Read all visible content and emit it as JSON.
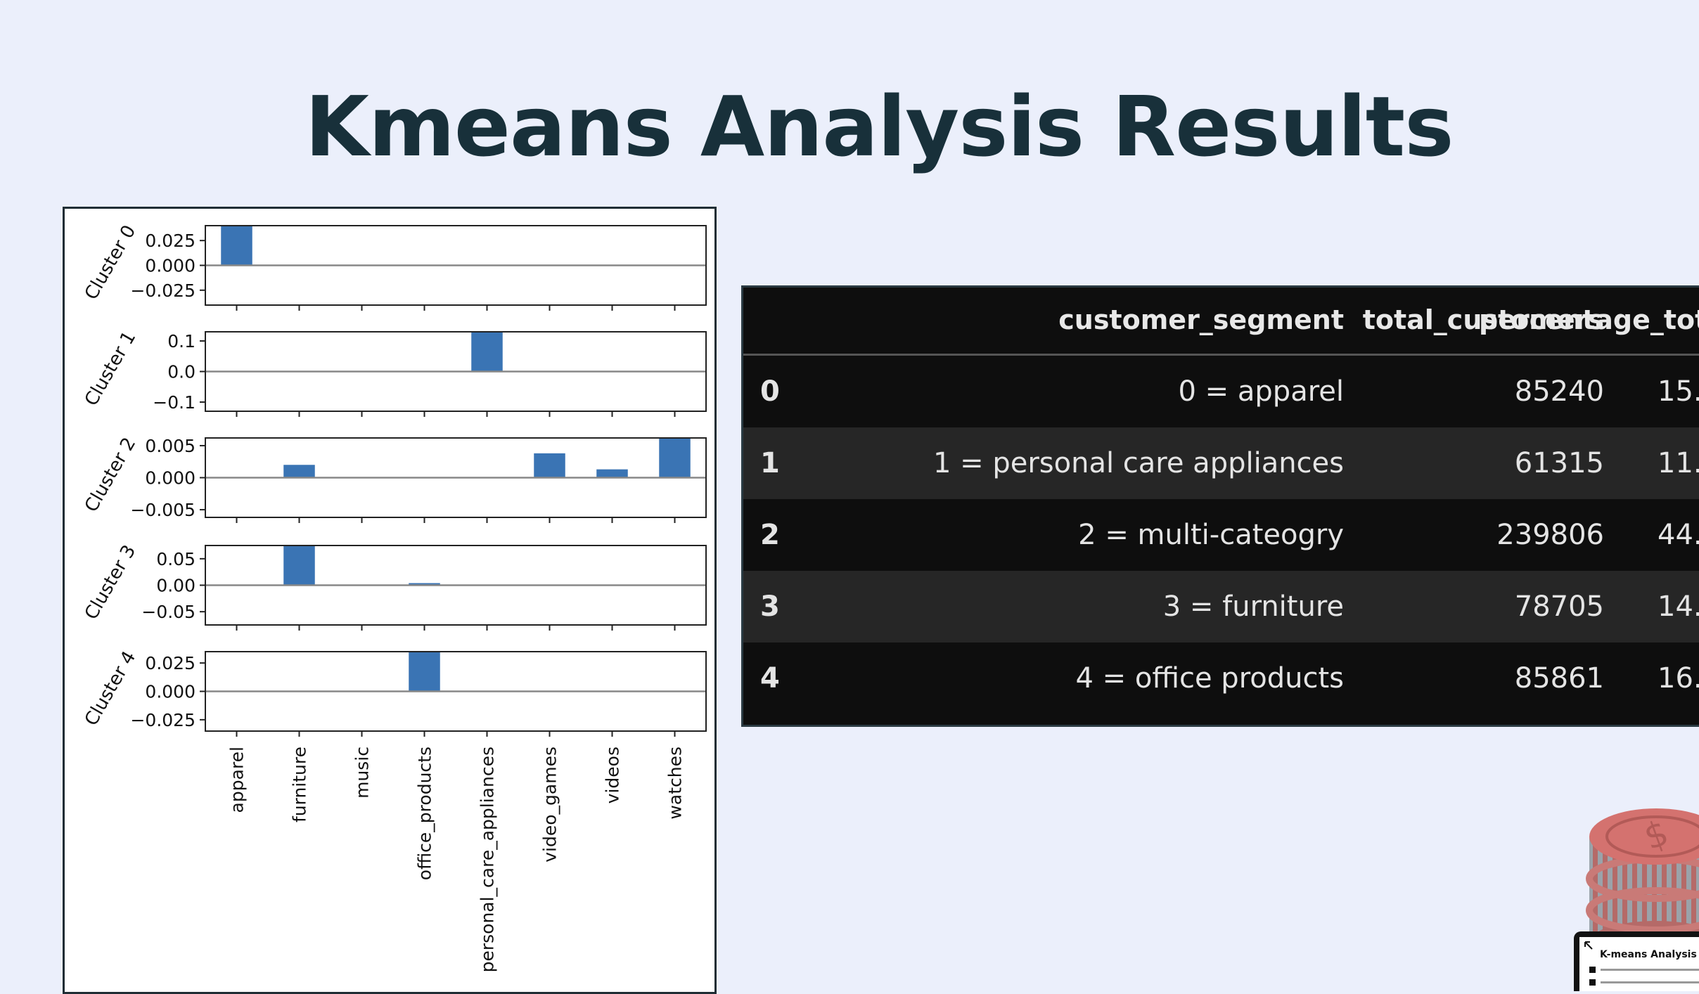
{
  "page": {
    "title": "Kmeans Analysis Results"
  },
  "chart_data": {
    "type": "bar",
    "categories": [
      "apparel",
      "furniture",
      "music",
      "office_products",
      "personal_care_appliances",
      "video_games",
      "videos",
      "watches"
    ],
    "panels": [
      {
        "label": "Cluster 0",
        "ylim": [
          -0.04,
          0.04
        ],
        "yticks": [
          0.025,
          0.0,
          -0.025
        ],
        "tick_labels": [
          "0.025",
          "0.000",
          "−0.025"
        ],
        "values": [
          0.045,
          0,
          0,
          0,
          0,
          0,
          0,
          0
        ]
      },
      {
        "label": "Cluster 1",
        "ylim": [
          -0.13,
          0.13
        ],
        "yticks": [
          0.1,
          0.0,
          -0.1
        ],
        "tick_labels": [
          "0.1",
          "0.0",
          "−0.1"
        ],
        "values": [
          0,
          0,
          0,
          0,
          0.15,
          0,
          0,
          0
        ]
      },
      {
        "label": "Cluster 2",
        "ylim": [
          -0.0062,
          0.0062
        ],
        "yticks": [
          0.005,
          0.0,
          -0.005
        ],
        "tick_labels": [
          "0.005",
          "0.000",
          "−0.005"
        ],
        "values": [
          0,
          0.002,
          0,
          0,
          0,
          0.0038,
          0.0013,
          0.0065
        ]
      },
      {
        "label": "Cluster 3",
        "ylim": [
          -0.075,
          0.075
        ],
        "yticks": [
          0.05,
          0.0,
          -0.05
        ],
        "tick_labels": [
          "0.05",
          "0.00",
          "−0.05"
        ],
        "values": [
          0,
          0.09,
          0,
          0.004,
          0,
          0,
          0,
          0
        ]
      },
      {
        "label": "Cluster 4",
        "ylim": [
          -0.035,
          0.035
        ],
        "yticks": [
          0.025,
          0.0,
          -0.025
        ],
        "tick_labels": [
          "0.025",
          "0.000",
          "−0.025"
        ],
        "values": [
          0,
          0,
          0,
          0.045,
          0,
          0,
          0,
          0
        ]
      }
    ],
    "bar_color": "#3a74b4"
  },
  "table": {
    "columns": [
      "customer_segment",
      "total_customers",
      "percentage_tot"
    ],
    "rows": [
      {
        "index": "0",
        "customer_segment": "0 = apparel",
        "total_customers": "85240",
        "percentage": "15."
      },
      {
        "index": "1",
        "customer_segment": "1 = personal care appliances",
        "total_customers": "61315",
        "percentage": "11."
      },
      {
        "index": "2",
        "customer_segment": "2 = multi-cateogry",
        "total_customers": "239806",
        "percentage": "44."
      },
      {
        "index": "3",
        "customer_segment": "3 = furniture",
        "total_customers": "78705",
        "percentage": "14."
      },
      {
        "index": "4",
        "customer_segment": "4 = office products",
        "total_customers": "85861",
        "percentage": "16."
      }
    ]
  },
  "thumbnail": {
    "title": "K-means Analysis"
  }
}
